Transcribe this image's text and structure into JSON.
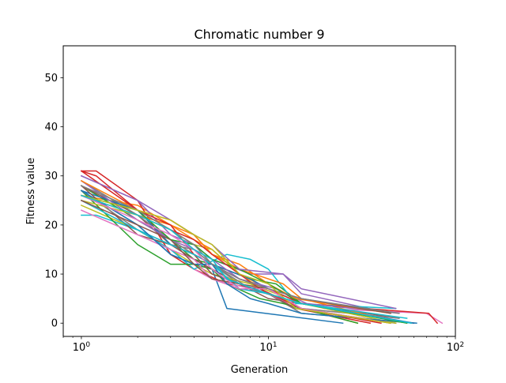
{
  "chart_data": {
    "type": "line",
    "title": "Chromatic number 9",
    "xlabel": "Generation",
    "ylabel": "Fitness value",
    "xscale": "log",
    "xlim": [
      0.8,
      100
    ],
    "ylim": [
      -2.7,
      56.5
    ],
    "grid": false,
    "legend": "none",
    "x_ticks": [
      {
        "value": 1,
        "label": "10",
        "exp": "0"
      },
      {
        "value": 10,
        "label": "10",
        "exp": "1"
      },
      {
        "value": 100,
        "label": "10",
        "exp": "2"
      }
    ],
    "y_ticks": [
      0,
      10,
      20,
      30,
      40,
      50
    ],
    "colors": [
      "#1f77b4",
      "#ff7f0e",
      "#2ca02c",
      "#d62728",
      "#9467bd",
      "#8c564b",
      "#e377c2",
      "#7f7f7f",
      "#bcbd22",
      "#17becf"
    ],
    "series": [
      {
        "x": [
          1,
          2,
          3,
          4,
          5,
          6,
          25
        ],
        "y": [
          27,
          20,
          14,
          12,
          11,
          3,
          0
        ]
      },
      {
        "x": [
          1,
          2,
          3,
          4,
          5,
          7,
          10,
          15,
          30
        ],
        "y": [
          26,
          24,
          20,
          17,
          15,
          10,
          7,
          3,
          0
        ]
      },
      {
        "x": [
          1,
          2,
          3,
          4,
          5,
          8,
          11,
          15,
          40
        ],
        "y": [
          28,
          21,
          17,
          13,
          12,
          9,
          8,
          4,
          1
        ]
      },
      {
        "x": [
          1,
          1.2,
          2,
          3,
          4,
          6,
          9,
          14,
          35
        ],
        "y": [
          31,
          31,
          25,
          14,
          11,
          8,
          7,
          3,
          0
        ]
      },
      {
        "x": [
          1,
          2,
          3,
          4,
          5,
          8,
          12,
          15,
          45
        ],
        "y": [
          30,
          25,
          18,
          16,
          13,
          10,
          10,
          6,
          2
        ]
      },
      {
        "x": [
          1,
          2,
          3,
          4,
          5,
          7,
          10,
          15,
          50
        ],
        "y": [
          28,
          22,
          16,
          13,
          11,
          8,
          5,
          4,
          1
        ]
      },
      {
        "x": [
          1,
          2,
          3,
          4,
          5,
          8,
          12,
          20,
          70,
          85
        ],
        "y": [
          25,
          19,
          15,
          11,
          9,
          7,
          5,
          3,
          2,
          0
        ]
      },
      {
        "x": [
          1,
          2,
          3,
          4,
          5,
          7,
          10,
          15,
          60
        ],
        "y": [
          29,
          22,
          17,
          14,
          12,
          8,
          6,
          2,
          0
        ]
      },
      {
        "x": [
          1,
          2,
          3,
          4,
          5,
          8,
          11,
          15,
          45
        ],
        "y": [
          24,
          19,
          15,
          12,
          10,
          8,
          6,
          3,
          0
        ]
      },
      {
        "x": [
          1,
          1.2,
          2,
          3,
          4,
          6,
          8,
          10,
          14,
          48
        ],
        "y": [
          22,
          22,
          19,
          15,
          11,
          14,
          13,
          11,
          4,
          3
        ]
      },
      {
        "x": [
          1,
          2,
          3,
          4,
          5,
          8,
          10,
          15,
          60
        ],
        "y": [
          27,
          23,
          16,
          14,
          12,
          9,
          7,
          4,
          0
        ]
      },
      {
        "x": [
          1,
          2,
          3,
          4,
          5,
          7,
          12,
          15,
          40
        ],
        "y": [
          26,
          22,
          20,
          18,
          14,
          11,
          8,
          5,
          1
        ]
      },
      {
        "x": [
          1,
          2,
          3,
          4,
          5,
          6,
          9,
          12,
          30
        ],
        "y": [
          27,
          16,
          12,
          12,
          11,
          8,
          5,
          4,
          0
        ]
      },
      {
        "x": [
          1,
          1.2,
          2,
          3,
          4,
          5,
          7,
          10,
          15,
          72,
          80
        ],
        "y": [
          31,
          30,
          23,
          20,
          14,
          12,
          9,
          7,
          4,
          2,
          0
        ]
      },
      {
        "x": [
          1,
          2,
          3,
          4,
          5,
          7,
          11,
          16,
          50
        ],
        "y": [
          29,
          21,
          17,
          15,
          13,
          9,
          7,
          4,
          2
        ]
      },
      {
        "x": [
          1,
          2,
          3,
          4,
          5,
          7,
          10,
          14,
          48
        ],
        "y": [
          28,
          18,
          16,
          14,
          10,
          8,
          6,
          3,
          0
        ]
      },
      {
        "x": [
          1,
          2,
          3,
          4,
          5,
          7,
          10,
          15,
          50
        ],
        "y": [
          23,
          18,
          15,
          13,
          9,
          7,
          6,
          3,
          1
        ]
      },
      {
        "x": [
          1,
          2,
          3,
          4,
          5,
          8,
          12,
          15,
          50
        ],
        "y": [
          27,
          19,
          16,
          15,
          12,
          7,
          5,
          3,
          1
        ]
      },
      {
        "x": [
          1,
          2,
          3,
          4,
          5,
          7,
          10,
          15,
          48
        ],
        "y": [
          25,
          22,
          19,
          16,
          15,
          10,
          6,
          4,
          0
        ]
      },
      {
        "x": [
          1,
          2,
          3,
          4,
          5,
          7,
          10,
          15,
          55
        ],
        "y": [
          25,
          19,
          16,
          14,
          12,
          7,
          6,
          4,
          1
        ]
      },
      {
        "x": [
          1,
          2,
          3,
          4,
          5,
          6,
          8,
          10,
          15,
          62
        ],
        "y": [
          27,
          20,
          14,
          12,
          12,
          8,
          5,
          4,
          2,
          0
        ]
      },
      {
        "x": [
          1,
          2,
          3,
          4,
          5,
          7,
          10,
          14,
          45
        ],
        "y": [
          29,
          23,
          21,
          18,
          14,
          12,
          8,
          5,
          2
        ]
      },
      {
        "x": [
          1,
          2,
          3,
          4,
          5,
          7,
          10,
          15,
          55
        ],
        "y": [
          26,
          23,
          17,
          16,
          13,
          11,
          8,
          4,
          0
        ]
      },
      {
        "x": [
          1,
          2,
          3,
          4,
          5,
          7,
          9,
          15,
          40
        ],
        "y": [
          31,
          23,
          19,
          17,
          14,
          10,
          7,
          3,
          0
        ]
      },
      {
        "x": [
          1,
          2,
          3,
          4,
          5,
          7,
          12,
          15,
          48
        ],
        "y": [
          30,
          25,
          21,
          18,
          16,
          11,
          10,
          7,
          3
        ]
      },
      {
        "x": [
          1,
          2,
          3,
          4,
          5,
          7,
          10,
          15,
          45
        ],
        "y": [
          25,
          20,
          17,
          12,
          9,
          8,
          7,
          5,
          2
        ]
      },
      {
        "x": [
          1,
          2,
          3,
          4,
          5,
          7,
          10,
          15,
          45
        ],
        "y": [
          26,
          21,
          18,
          15,
          11,
          7,
          7,
          3,
          0
        ]
      },
      {
        "x": [
          1,
          2,
          3,
          4,
          5,
          7,
          10,
          15,
          50
        ],
        "y": [
          28,
          23,
          19,
          16,
          12,
          9,
          7,
          5,
          2
        ]
      },
      {
        "x": [
          1,
          2,
          3,
          4,
          5,
          7,
          10,
          14,
          45
        ],
        "y": [
          26,
          23,
          21,
          18,
          16,
          10,
          8,
          3,
          0
        ]
      },
      {
        "x": [
          1,
          2,
          3,
          4,
          5,
          6,
          10,
          15,
          58
        ],
        "y": [
          26,
          22,
          19,
          15,
          13,
          9,
          6,
          4,
          0
        ]
      }
    ]
  }
}
